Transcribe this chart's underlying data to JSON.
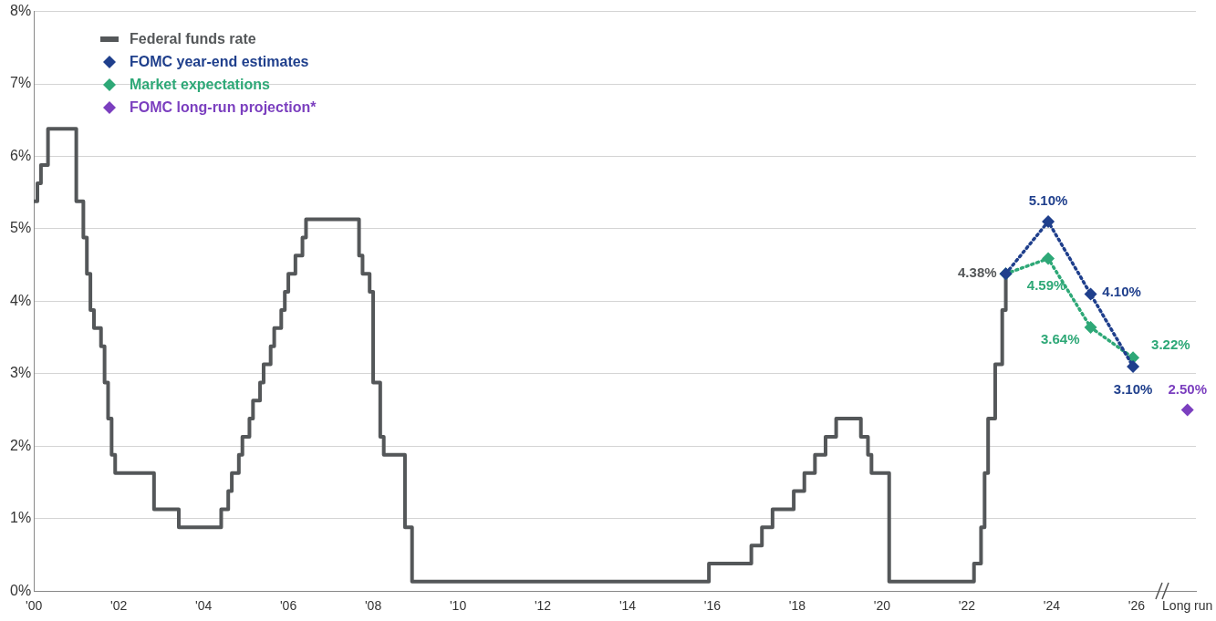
{
  "chart_data": {
    "type": "line",
    "xlim": [
      2000,
      2027.4
    ],
    "ylim": [
      0,
      8
    ],
    "xticks": [
      {
        "value": 2000,
        "label": "'00"
      },
      {
        "value": 2002,
        "label": "'02"
      },
      {
        "value": 2004,
        "label": "'04"
      },
      {
        "value": 2006,
        "label": "'06"
      },
      {
        "value": 2008,
        "label": "'08"
      },
      {
        "value": 2010,
        "label": "'10"
      },
      {
        "value": 2012,
        "label": "'12"
      },
      {
        "value": 2014,
        "label": "'14"
      },
      {
        "value": 2016,
        "label": "'16"
      },
      {
        "value": 2018,
        "label": "'18"
      },
      {
        "value": 2020,
        "label": "'20"
      },
      {
        "value": 2022,
        "label": "'22"
      },
      {
        "value": 2024,
        "label": "'24"
      },
      {
        "value": 2026,
        "label": "'26"
      },
      {
        "value": 2027.2,
        "label": "Long run"
      }
    ],
    "yticks": [
      {
        "value": 0,
        "label": "0%"
      },
      {
        "value": 1,
        "label": "1%"
      },
      {
        "value": 2,
        "label": "2%"
      },
      {
        "value": 3,
        "label": "3%"
      },
      {
        "value": 4,
        "label": "4%"
      },
      {
        "value": 5,
        "label": "5%"
      },
      {
        "value": 6,
        "label": "6%"
      },
      {
        "value": 7,
        "label": "7%"
      },
      {
        "value": 8,
        "label": "8%"
      }
    ],
    "grid": "y",
    "legend": "top left",
    "series": [
      {
        "name": "FOMC year-end estimates",
        "color": "#1f3f8c",
        "marker": "diamond",
        "line_style": "dotted",
        "x": [
          2022.917,
          2023.917,
          2024.917,
          2025.917
        ],
        "values": [
          4.38,
          5.1,
          4.1,
          3.1
        ],
        "value_labels": [
          null,
          "5.10%",
          "4.10%",
          "3.10%"
        ]
      },
      {
        "name": "Market expectations",
        "color": "#2ea877",
        "marker": "diamond",
        "line_style": "dotted",
        "x": [
          2022.917,
          2023.917,
          2024.917,
          2025.917
        ],
        "values": [
          4.38,
          4.59,
          3.64,
          3.22
        ],
        "value_labels": [
          null,
          "4.59%",
          "3.64%",
          "3.22%"
        ]
      },
      {
        "name": "FOMC long-run projection*",
        "type": "scatter",
        "color": "#7b3fbf",
        "marker": "diamond",
        "x": [
          2027.2
        ],
        "values": [
          2.5
        ],
        "value_labels": [
          "2.50%"
        ]
      },
      {
        "name": "Federal funds rate",
        "type": "step",
        "color": "#545759",
        "marker": "none",
        "line_style": "solid",
        "x": [
          2000,
          2000.083,
          2000.167,
          2000.333,
          2001,
          2001.167,
          2001.25,
          2001.333,
          2001.417,
          2001.583,
          2001.667,
          2001.75,
          2001.833,
          2001.917,
          2002.833,
          2003.417,
          2004.417,
          2004.583,
          2004.667,
          2004.833,
          2004.917,
          2005.083,
          2005.167,
          2005.333,
          2005.417,
          2005.583,
          2005.667,
          2005.833,
          2005.917,
          2006,
          2006.167,
          2006.333,
          2006.417,
          2007.667,
          2007.75,
          2007.917,
          2008,
          2008.167,
          2008.25,
          2008.75,
          2008.917,
          2015.917,
          2016.917,
          2017.167,
          2017.417,
          2017.917,
          2018.167,
          2018.417,
          2018.667,
          2018.917,
          2019.5,
          2019.667,
          2019.75,
          2020.167,
          2022.167,
          2022.333,
          2022.417,
          2022.5,
          2022.667,
          2022.833,
          2022.917
        ],
        "values": [
          5.38,
          5.63,
          5.88,
          6.38,
          5.38,
          4.88,
          4.38,
          3.88,
          3.63,
          3.38,
          2.88,
          2.38,
          1.88,
          1.63,
          1.13,
          0.88,
          1.13,
          1.38,
          1.63,
          1.88,
          2.13,
          2.38,
          2.63,
          2.88,
          3.13,
          3.38,
          3.63,
          3.88,
          4.13,
          4.38,
          4.63,
          4.88,
          5.13,
          4.63,
          4.38,
          4.13,
          2.88,
          2.13,
          1.88,
          0.88,
          0.13,
          0.38,
          0.63,
          0.88,
          1.13,
          1.38,
          1.63,
          1.88,
          2.13,
          2.38,
          2.13,
          1.88,
          1.63,
          0.13,
          0.38,
          0.88,
          1.63,
          2.38,
          3.13,
          3.88,
          4.38
        ],
        "value_labels": [
          null,
          null,
          null,
          null,
          null,
          null,
          null,
          null,
          null,
          null,
          null,
          null,
          null,
          null,
          null,
          null,
          null,
          null,
          null,
          null,
          null,
          null,
          null,
          null,
          null,
          null,
          null,
          null,
          null,
          null,
          null,
          null,
          null,
          null,
          null,
          null,
          null,
          null,
          null,
          null,
          null,
          null,
          null,
          null,
          null,
          null,
          null,
          null,
          null,
          null,
          null,
          null,
          null,
          null,
          null,
          null,
          null,
          null,
          null,
          null,
          "4.38%"
        ]
      }
    ]
  }
}
